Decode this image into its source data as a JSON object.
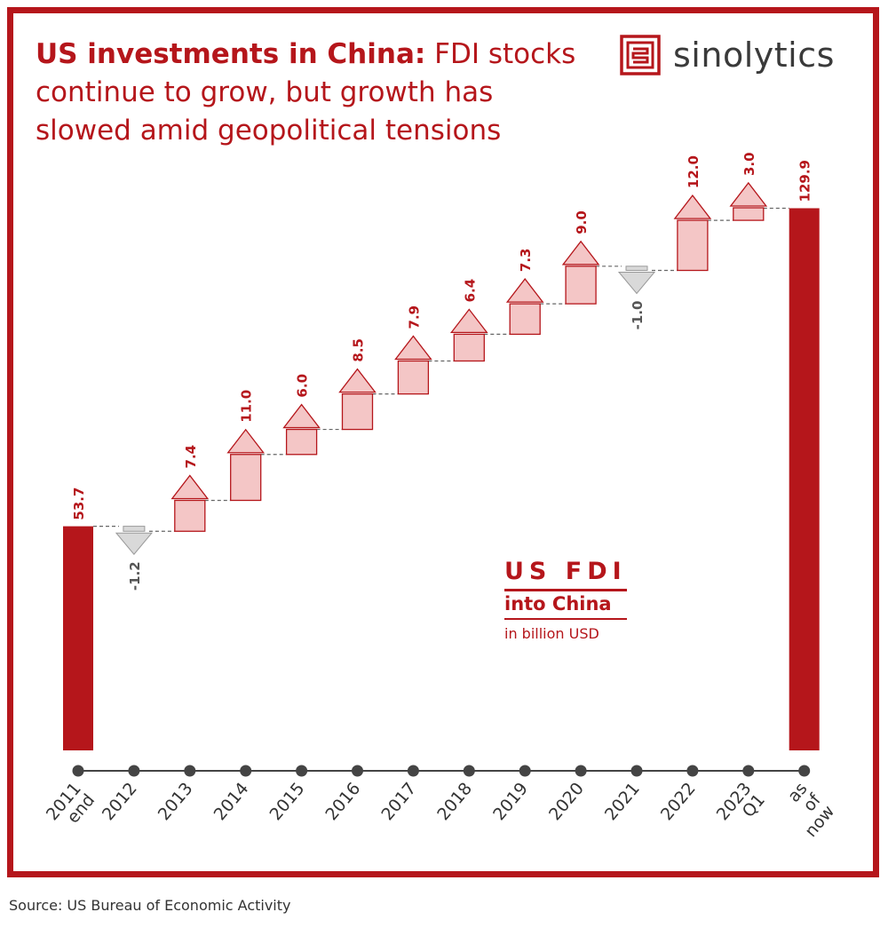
{
  "title": {
    "lead": "US investments in China:",
    "rest": " FDI stocks continue to grow, but growth has slowed amid geopolitical tensions"
  },
  "brand": {
    "name": "sinolytics"
  },
  "legend": {
    "line1": "US FDI",
    "line2": "into China",
    "line3": "in billion USD"
  },
  "source": "Source: US Bureau of Economic Activity",
  "colors": {
    "accent": "#b5161b",
    "increase_fill": "#f4c6c6",
    "decrease_fill": "#d9d9d9",
    "decrease_stroke": "#999999",
    "axis": "#444444"
  },
  "chart_data": {
    "type": "bar",
    "subtype": "waterfall",
    "categories": [
      "2011 end",
      "2012",
      "2013",
      "2014",
      "2015",
      "2016",
      "2017",
      "2018",
      "2019",
      "2020",
      "2021",
      "2022",
      "2023 Q1",
      "as of now"
    ],
    "values": [
      53.7,
      -1.2,
      7.4,
      11.0,
      6.0,
      8.5,
      7.9,
      6.4,
      7.3,
      9.0,
      -1.0,
      12.0,
      3.0,
      129.9
    ],
    "value_labels": [
      "53.7",
      "-1.2",
      "7.4",
      "11.0",
      "6.0",
      "8.5",
      "7.9",
      "6.4",
      "7.3",
      "9.0",
      "-1.0",
      "12.0",
      "3.0",
      "129.9"
    ],
    "measures": [
      "total",
      "change",
      "change",
      "change",
      "change",
      "change",
      "change",
      "change",
      "change",
      "change",
      "change",
      "change",
      "change",
      "total"
    ],
    "ylim": [
      0,
      135
    ],
    "grid": false,
    "legend_position": "center-right"
  }
}
